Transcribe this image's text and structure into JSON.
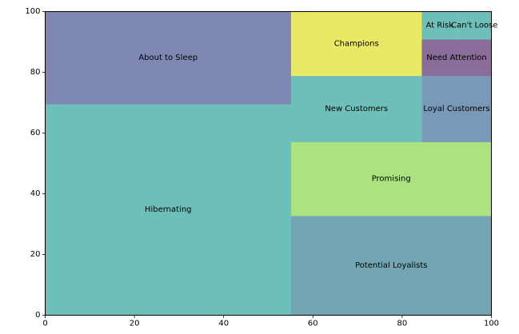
{
  "chart_data": {
    "type": "treemap",
    "title": "",
    "xlabel": "",
    "ylabel": "",
    "xlim": [
      0,
      100
    ],
    "ylim": [
      0,
      100
    ],
    "x_ticks": [
      0,
      20,
      40,
      60,
      80,
      100
    ],
    "y_ticks": [
      0,
      20,
      40,
      60,
      80,
      100
    ],
    "grid": false,
    "alpha": 0.6,
    "rectangles": [
      {
        "label": "Hibernating",
        "x": 0,
        "y": 0,
        "dx": 55.1,
        "dy": 69.4,
        "color": "#0b948a"
      },
      {
        "label": "About to Sleep",
        "x": 0,
        "y": 69.4,
        "dx": 55.1,
        "dy": 30.6,
        "color": "#2a387e"
      },
      {
        "label": "Potential Loyalists",
        "x": 55.1,
        "y": 0,
        "dx": 44.9,
        "dy": 32.7,
        "color": "#146b80"
      },
      {
        "label": "Promising",
        "x": 55.1,
        "y": 32.7,
        "dx": 44.9,
        "dy": 24.3,
        "color": "#76d02a"
      },
      {
        "label": "New Customers",
        "x": 55.1,
        "y": 57.0,
        "dx": 29.3,
        "dy": 21.8,
        "color": "#0e948a"
      },
      {
        "label": "Champions",
        "x": 55.1,
        "y": 78.8,
        "dx": 29.3,
        "dy": 21.2,
        "color": "#dbdb00"
      },
      {
        "label": "Loyal Customers",
        "x": 84.4,
        "y": 57.0,
        "dx": 15.6,
        "dy": 21.8,
        "color": "#1e5587"
      },
      {
        "label": "Need Attention",
        "x": 84.4,
        "y": 78.8,
        "dx": 15.6,
        "dy": 12.0,
        "color": "#3c0c56"
      },
      {
        "label": "At Risk",
        "x": 84.4,
        "y": 90.8,
        "dx": 8.0,
        "dy": 9.2,
        "color": "#0b948a"
      },
      {
        "label": "Can't Loose",
        "x": 92.4,
        "y": 90.8,
        "dx": 7.6,
        "dy": 9.2,
        "color": "#0b948a"
      }
    ]
  }
}
